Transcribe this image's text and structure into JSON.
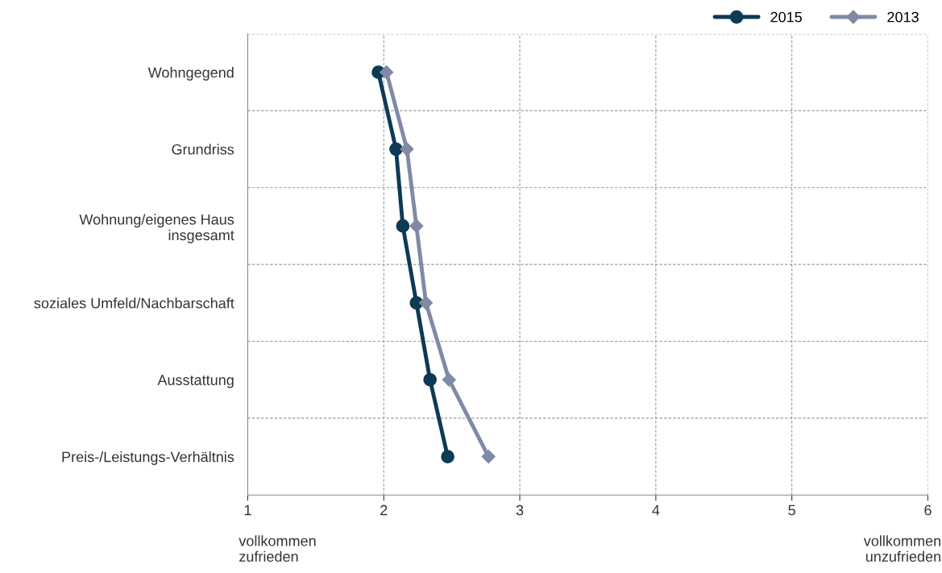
{
  "chart_data": {
    "type": "line",
    "orientation": "horizontal",
    "categories": [
      "Wohngegend",
      "Grundriss",
      "Wohnung/eigenes Haus\ninsgesamt",
      "soziales Umfeld/Nachbarschaft",
      "Ausstattung",
      "Preis-/Leistungs-Verhältnis"
    ],
    "series": [
      {
        "name": "2015",
        "color": "#0d3a55",
        "marker": "circle",
        "values": [
          1.96,
          2.09,
          2.14,
          2.24,
          2.34,
          2.47
        ]
      },
      {
        "name": "2013",
        "color": "#7f8aa6",
        "marker": "diamond",
        "values": [
          2.02,
          2.17,
          2.24,
          2.31,
          2.48,
          2.77
        ]
      }
    ],
    "xlim": [
      1,
      6
    ],
    "xticks": [
      1,
      2,
      3,
      4,
      5,
      6
    ],
    "grid": true,
    "legend": "top right",
    "annotations": [
      "vollkommen\nzufrieden",
      "vollkommen\nunzufrieden"
    ]
  }
}
